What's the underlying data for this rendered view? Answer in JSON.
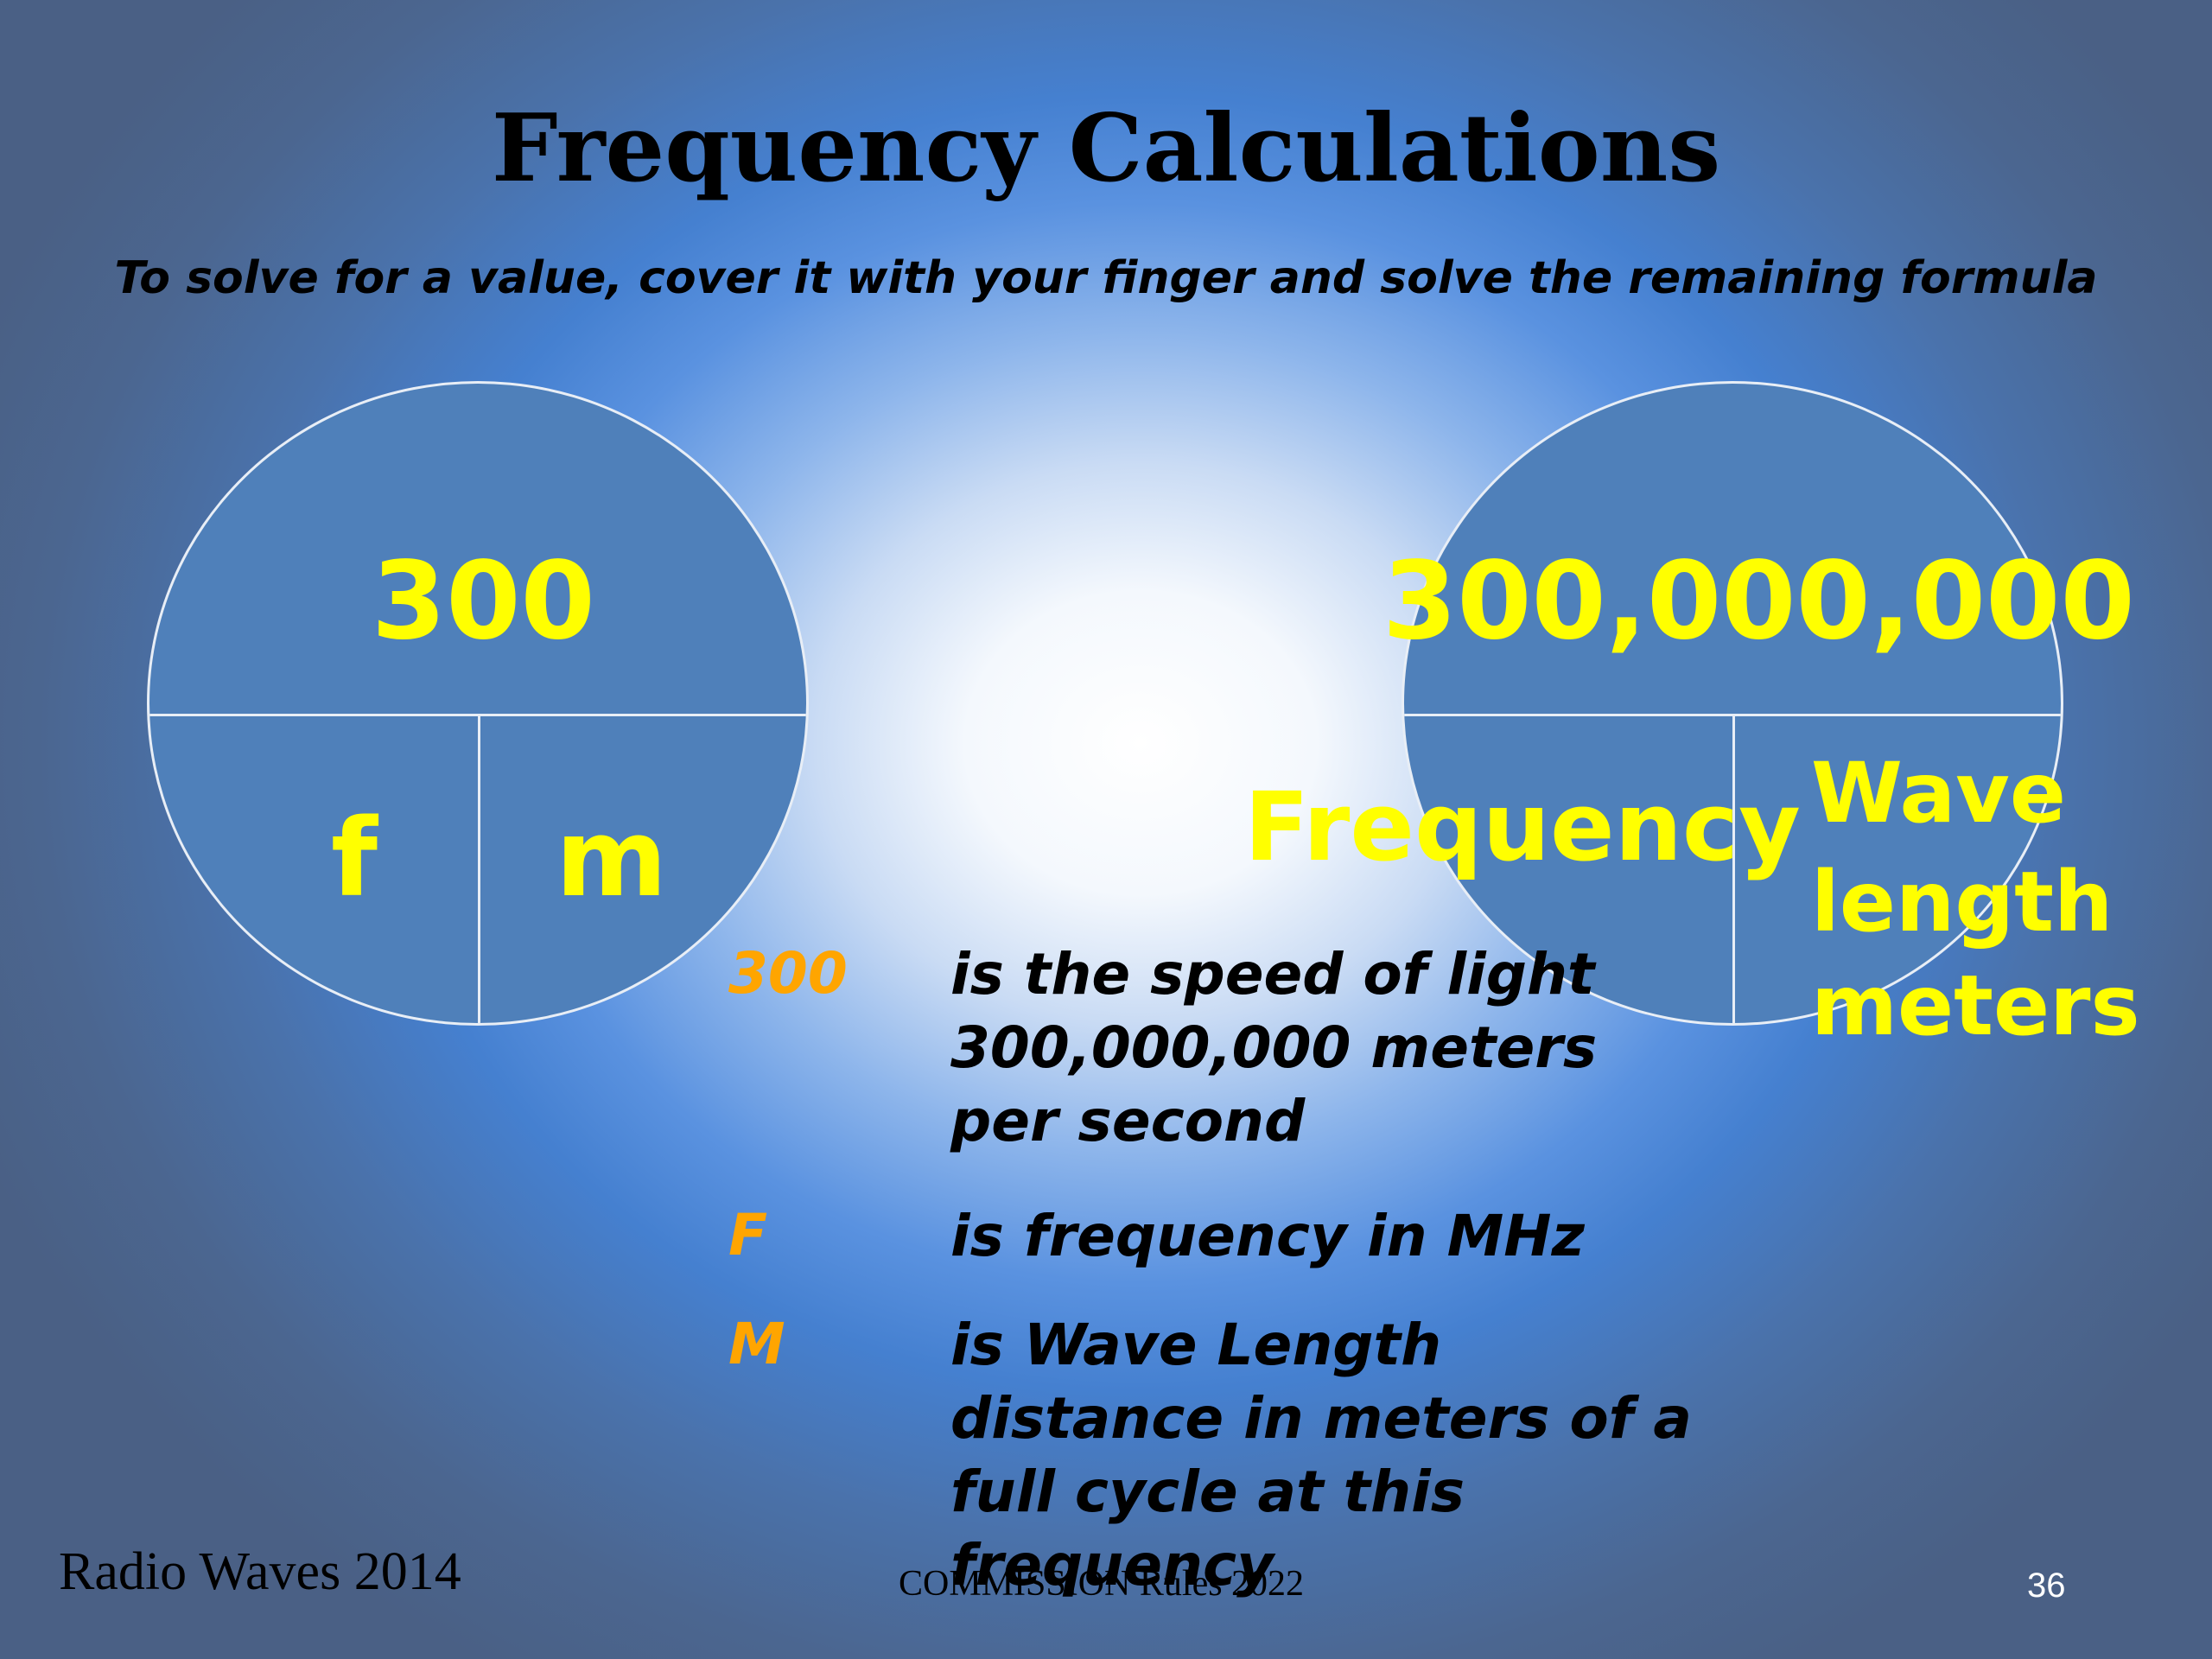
{
  "slide": {
    "title": "Frequency Calculations",
    "subtitle": "To solve for a value, cover it with your finger and solve the remaining formula"
  },
  "left_circle": {
    "top_label": "300",
    "bottom_left_label": "f",
    "bottom_right_label": "m"
  },
  "right_circle": {
    "top_label": "300,000,000",
    "bottom_left_label": "Frequency",
    "bottom_right_lines": [
      "Wave",
      "length",
      "meters"
    ]
  },
  "legend": [
    {
      "key": "300",
      "lines": [
        "is the speed of light",
        "300,000,000 meters",
        "per second"
      ]
    },
    {
      "key": "F",
      "lines": [
        "is  frequency in MHz"
      ]
    },
    {
      "key": "M",
      "lines": [
        "is  Wave Length",
        "distance in meters of a",
        "full cycle at this",
        "frequency"
      ]
    }
  ],
  "footer": {
    "left": "Radio Waves 2014",
    "center": "COMMISSION Rules 2022",
    "page_number": "36"
  },
  "colors": {
    "label_yellow": "#ffff00",
    "legend_key_orange": "#ffa500",
    "circle_fill": "#4f80ba"
  }
}
